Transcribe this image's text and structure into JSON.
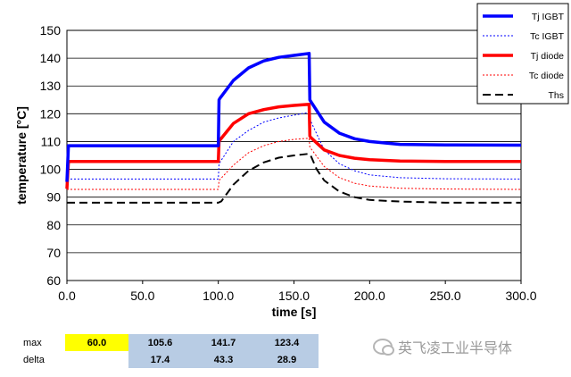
{
  "chart_data": {
    "type": "line",
    "xlabel": "time [s]",
    "ylabel": "temperature [°C]",
    "xlim": [
      0,
      300
    ],
    "ylim": [
      60,
      150
    ],
    "x_ticks": [
      "0.0",
      "50.0",
      "100.0",
      "150.0",
      "200.0",
      "250.0",
      "300.0"
    ],
    "y_ticks": [
      "60",
      "70",
      "80",
      "90",
      "100",
      "110",
      "120",
      "130",
      "140",
      "150"
    ],
    "grid": "horizontal",
    "legend_position": "top-right",
    "series": [
      {
        "name": "Tj IGBT",
        "color": "#0000ff",
        "style": "solid-thick",
        "x": [
          0,
          1,
          100,
          100.5,
          101,
          110,
          120,
          130,
          140,
          150,
          160,
          160.5,
          161,
          170,
          180,
          190,
          200,
          220,
          250,
          300
        ],
        "y": [
          95.5,
          108.5,
          108.5,
          125,
          125.5,
          132,
          136.5,
          139,
          140.3,
          141,
          141.7,
          125,
          124.5,
          117,
          113,
          111,
          110,
          109,
          108.8,
          108.7
        ]
      },
      {
        "name": "Tc IGBT",
        "color": "#0000ff",
        "style": "dotted",
        "x": [
          0,
          1,
          100,
          100.5,
          110,
          120,
          130,
          140,
          150,
          160,
          160.5,
          170,
          180,
          190,
          200,
          220,
          250,
          300
        ],
        "y": [
          96.5,
          96.5,
          96.5,
          102,
          110,
          114,
          117,
          118.5,
          119.5,
          120.5,
          118,
          107,
          102,
          99.5,
          98,
          97,
          96.6,
          96.5
        ]
      },
      {
        "name": "Tj diode",
        "color": "#ff0000",
        "style": "solid-thick",
        "x": [
          0,
          1,
          100,
          100.5,
          101,
          110,
          120,
          130,
          140,
          150,
          160,
          160.5,
          161,
          170,
          180,
          190,
          200,
          220,
          250,
          300
        ],
        "y": [
          93,
          102.8,
          102.8,
          110,
          110.5,
          116.5,
          120,
          121.5,
          122.5,
          123,
          123.4,
          112,
          111.5,
          107,
          105,
          104,
          103.5,
          103,
          102.8,
          102.8
        ]
      },
      {
        "name": "Tc diode",
        "color": "#ff0000",
        "style": "dotted",
        "x": [
          0,
          1,
          100,
          100.5,
          110,
          120,
          130,
          140,
          150,
          160,
          160.5,
          170,
          180,
          190,
          200,
          220,
          250,
          300
        ],
        "y": [
          92.8,
          92.8,
          92.8,
          96,
          101.5,
          106,
          108.5,
          110,
          110.8,
          111.2,
          108,
          101,
          97,
          95,
          94,
          93.2,
          92.9,
          92.8
        ]
      },
      {
        "name": "Ths",
        "color": "#000000",
        "style": "dashed",
        "x": [
          0,
          100,
          102,
          110,
          120,
          130,
          140,
          150,
          160,
          161,
          165,
          170,
          180,
          190,
          200,
          220,
          250,
          300
        ],
        "y": [
          88,
          88,
          88.5,
          94.5,
          99.5,
          102.5,
          104.2,
          105,
          105.6,
          105,
          100,
          96,
          92,
          90,
          89,
          88.4,
          88,
          88
        ]
      }
    ]
  },
  "summary": {
    "rows": [
      {
        "label": "max",
        "values": [
          "60.0",
          "105.6",
          "141.7",
          "123.4"
        ]
      },
      {
        "label": "delta",
        "values": [
          "",
          "17.4",
          "43.3",
          "28.9"
        ]
      }
    ]
  },
  "watermark": {
    "text": "英飞凌工业半导体",
    "icon": "wechat-icon"
  }
}
